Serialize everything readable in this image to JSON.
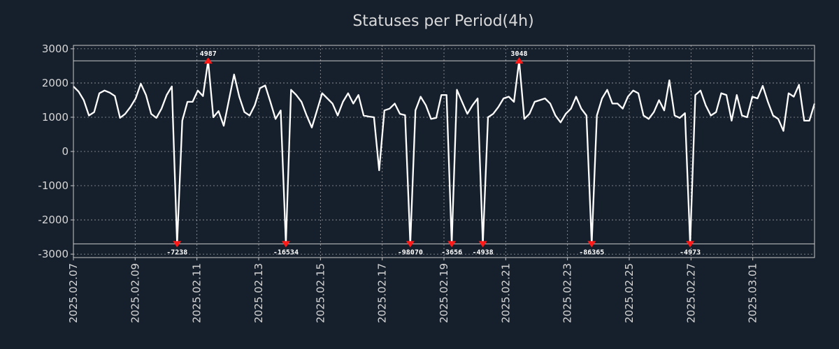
{
  "colors": {
    "background": "#16202d",
    "line": "#ffffff",
    "grid": "#c8c8c8",
    "text": "#d6d6d6",
    "marker": "#ff1a1a"
  },
  "chart_data": {
    "type": "line",
    "title": "Statuses per Period(4h)",
    "xlabel": "",
    "ylabel": "",
    "grid": true,
    "ylim": [
      -3100,
      3100
    ],
    "clip_range": [
      -2700,
      2650
    ],
    "yticks": [
      3000,
      2000,
      1000,
      0,
      -1000,
      -2000,
      -3000
    ],
    "ytick_labels": [
      "3000",
      "2000",
      "1000",
      "0",
      "-1000",
      "-2000",
      "-3000"
    ],
    "x_start": "2025.02.07",
    "x_end": "2025.03.03",
    "xtick_labels": [
      "2025.02.07",
      "2025.02.09",
      "2025.02.11",
      "2025.02.13",
      "2025.02.15",
      "2025.02.17",
      "2025.02.19",
      "2025.02.21",
      "2025.02.23",
      "2025.02.25",
      "2025.02.27",
      "2025.03.01"
    ],
    "series": [
      {
        "name": "Statuses",
        "values": [
          1900,
          1750,
          1500,
          1050,
          1150,
          1700,
          1780,
          1720,
          1620,
          980,
          1100,
          1300,
          1550,
          1980,
          1650,
          1100,
          980,
          1250,
          1650,
          1900,
          -2700,
          900,
          1450,
          1450,
          1780,
          1620,
          2650,
          1000,
          1180,
          750,
          1500,
          2250,
          1600,
          1150,
          1050,
          1350,
          1850,
          1930,
          1450,
          950,
          1200,
          -2700,
          1800,
          1650,
          1450,
          1050,
          700,
          1200,
          1700,
          1550,
          1400,
          1050,
          1450,
          1700,
          1400,
          1650,
          1050,
          1020,
          1000,
          -550,
          1200,
          1250,
          1400,
          1100,
          1060,
          -2700,
          1200,
          1600,
          1350,
          950,
          980,
          1650,
          1650,
          -2700,
          1800,
          1450,
          1100,
          1350,
          1550,
          -2700,
          1000,
          1100,
          1300,
          1550,
          1600,
          1450,
          2650,
          950,
          1100,
          1450,
          1500,
          1550,
          1400,
          1050,
          850,
          1100,
          1250,
          1600,
          1250,
          1050,
          -2700,
          1050,
          1550,
          1800,
          1400,
          1400,
          1250,
          1600,
          1780,
          1700,
          1050,
          950,
          1150,
          1500,
          1200,
          2080,
          1050,
          980,
          1120,
          -2700,
          1650,
          1780,
          1350,
          1050,
          1150,
          1700,
          1650,
          900,
          1650,
          1050,
          1000,
          1600,
          1550,
          1920,
          1450,
          1050,
          950,
          600,
          1700,
          1600,
          1950,
          900,
          900,
          1400
        ]
      }
    ],
    "annotations": [
      {
        "index": 20,
        "label": "-7238",
        "kind": "min"
      },
      {
        "index": 26,
        "label": "4987",
        "kind": "max"
      },
      {
        "index": 41,
        "label": "-16534",
        "kind": "min"
      },
      {
        "index": 65,
        "label": "-98070",
        "kind": "min"
      },
      {
        "index": 73,
        "label": "-3656",
        "kind": "min"
      },
      {
        "index": 79,
        "label": "-4938",
        "kind": "min"
      },
      {
        "index": 86,
        "label": "3048",
        "kind": "max"
      },
      {
        "index": 100,
        "label": "-86365",
        "kind": "min"
      },
      {
        "index": 119,
        "label": "-4973",
        "kind": "min"
      }
    ]
  }
}
